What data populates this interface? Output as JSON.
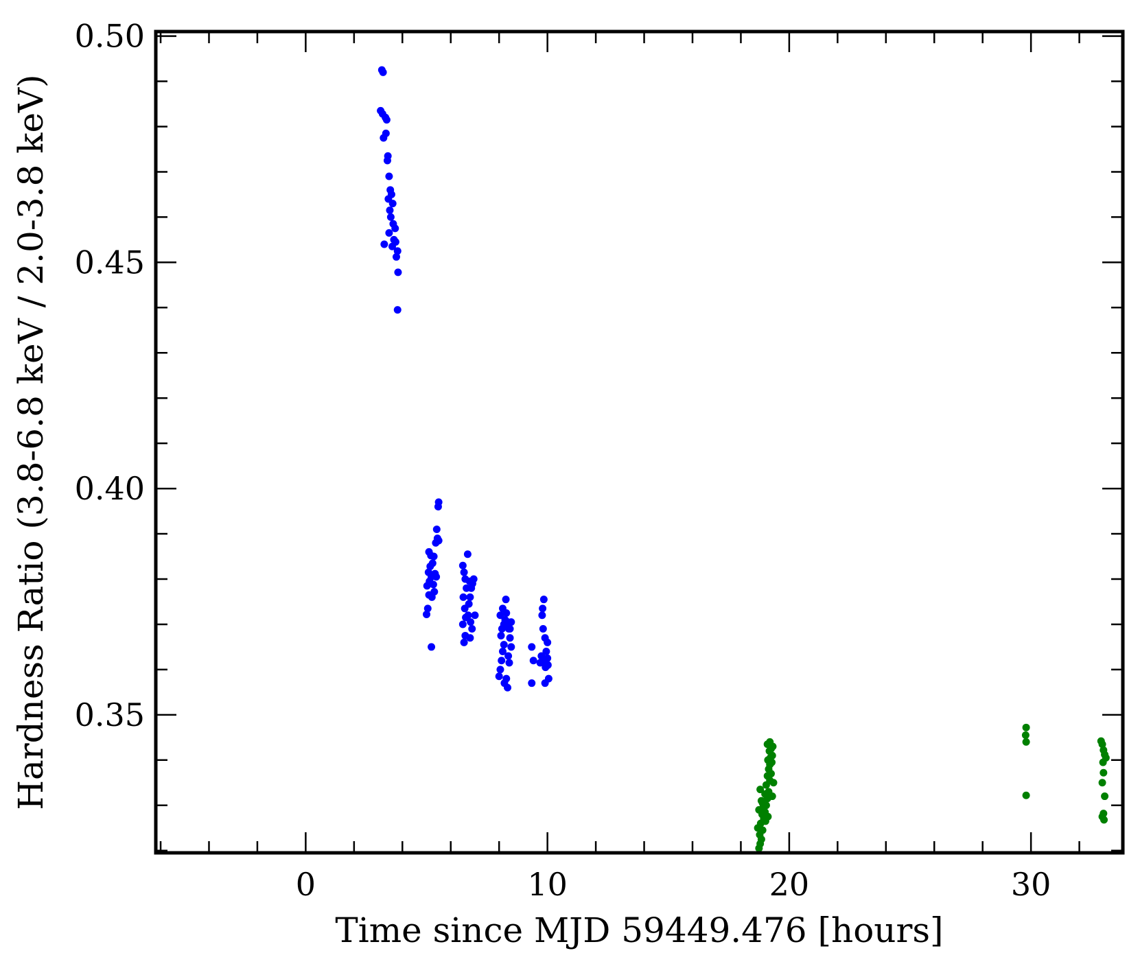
{
  "chart_data": {
    "type": "scatter",
    "title": "",
    "xlabel": "Time since MJD 59449.476 [hours]",
    "ylabel": "Hardness Ratio (3.8-6.8 keV / 2.0-3.8 keV)",
    "xlim": [
      -6.2,
      33.8
    ],
    "ylim": [
      0.3195,
      0.501
    ],
    "x_ticks": [
      0,
      10,
      20,
      30
    ],
    "x_tick_labels": [
      "0",
      "10",
      "20",
      "30"
    ],
    "y_ticks": [
      0.35,
      0.4,
      0.45,
      0.5
    ],
    "y_tick_labels": [
      "0.35",
      "0.40",
      "0.45",
      "0.50"
    ],
    "grid": false,
    "series": [
      {
        "color": "#0000ff",
        "points": [
          [
            3.15,
            0.4925
          ],
          [
            3.2,
            0.492
          ],
          [
            3.1,
            0.4835
          ],
          [
            3.18,
            0.4828
          ],
          [
            3.3,
            0.482
          ],
          [
            3.35,
            0.4815
          ],
          [
            3.22,
            0.4775
          ],
          [
            3.32,
            0.4785
          ],
          [
            3.4,
            0.4735
          ],
          [
            3.38,
            0.4725
          ],
          [
            3.45,
            0.469
          ],
          [
            3.5,
            0.466
          ],
          [
            3.55,
            0.465
          ],
          [
            3.42,
            0.464
          ],
          [
            3.6,
            0.463
          ],
          [
            3.48,
            0.4615
          ],
          [
            3.52,
            0.46
          ],
          [
            3.62,
            0.4585
          ],
          [
            3.7,
            0.4575
          ],
          [
            3.45,
            0.4565
          ],
          [
            3.65,
            0.455
          ],
          [
            3.72,
            0.4545
          ],
          [
            3.25,
            0.454
          ],
          [
            3.58,
            0.4535
          ],
          [
            3.8,
            0.4525
          ],
          [
            3.75,
            0.4512
          ],
          [
            3.82,
            0.4478
          ],
          [
            3.8,
            0.4395
          ],
          [
            5.0,
            0.3722
          ],
          [
            5.05,
            0.3735
          ],
          [
            5.1,
            0.3765
          ],
          [
            5.02,
            0.3785
          ],
          [
            5.12,
            0.3795
          ],
          [
            5.2,
            0.3805
          ],
          [
            5.08,
            0.3815
          ],
          [
            5.15,
            0.3828
          ],
          [
            5.25,
            0.3835
          ],
          [
            5.18,
            0.3852
          ],
          [
            5.3,
            0.385
          ],
          [
            5.1,
            0.386
          ],
          [
            5.35,
            0.3812
          ],
          [
            5.28,
            0.3788
          ],
          [
            5.32,
            0.3772
          ],
          [
            5.22,
            0.376
          ],
          [
            5.4,
            0.3805
          ],
          [
            5.38,
            0.388
          ],
          [
            5.45,
            0.389
          ],
          [
            5.5,
            0.3885
          ],
          [
            5.42,
            0.391
          ],
          [
            5.48,
            0.396
          ],
          [
            5.5,
            0.397
          ],
          [
            5.2,
            0.365
          ],
          [
            6.55,
            0.366
          ],
          [
            6.6,
            0.3675
          ],
          [
            6.5,
            0.37
          ],
          [
            6.62,
            0.3715
          ],
          [
            6.58,
            0.3735
          ],
          [
            6.52,
            0.376
          ],
          [
            6.65,
            0.378
          ],
          [
            6.6,
            0.38
          ],
          [
            6.55,
            0.3815
          ],
          [
            6.5,
            0.383
          ],
          [
            6.7,
            0.3855
          ],
          [
            6.75,
            0.3745
          ],
          [
            6.8,
            0.376
          ],
          [
            6.85,
            0.378
          ],
          [
            6.78,
            0.3795
          ],
          [
            6.9,
            0.379
          ],
          [
            6.72,
            0.372
          ],
          [
            6.82,
            0.3705
          ],
          [
            6.88,
            0.369
          ],
          [
            6.95,
            0.38
          ],
          [
            7.0,
            0.372
          ],
          [
            6.8,
            0.367
          ],
          [
            8.0,
            0.3585
          ],
          [
            8.05,
            0.36
          ],
          [
            8.1,
            0.362
          ],
          [
            8.15,
            0.364
          ],
          [
            8.2,
            0.3655
          ],
          [
            8.08,
            0.3675
          ],
          [
            8.12,
            0.369
          ],
          [
            8.2,
            0.37
          ],
          [
            8.25,
            0.371
          ],
          [
            8.3,
            0.3725
          ],
          [
            8.15,
            0.3735
          ],
          [
            8.05,
            0.372
          ],
          [
            8.35,
            0.3705
          ],
          [
            8.4,
            0.369
          ],
          [
            8.45,
            0.367
          ],
          [
            8.5,
            0.365
          ],
          [
            8.38,
            0.363
          ],
          [
            8.42,
            0.3615
          ],
          [
            8.3,
            0.358
          ],
          [
            8.35,
            0.356
          ],
          [
            8.22,
            0.357
          ],
          [
            8.28,
            0.3755
          ],
          [
            8.45,
            0.369
          ],
          [
            8.5,
            0.3705
          ],
          [
            9.35,
            0.365
          ],
          [
            9.42,
            0.362
          ],
          [
            9.35,
            0.357
          ],
          [
            9.8,
            0.3735
          ],
          [
            9.85,
            0.3755
          ],
          [
            9.78,
            0.372
          ],
          [
            9.82,
            0.369
          ],
          [
            9.9,
            0.367
          ],
          [
            9.95,
            0.364
          ],
          [
            9.85,
            0.362
          ],
          [
            10.0,
            0.3625
          ],
          [
            9.92,
            0.3605
          ],
          [
            10.05,
            0.358
          ],
          [
            9.9,
            0.357
          ],
          [
            10.02,
            0.361
          ],
          [
            9.7,
            0.3615
          ],
          [
            9.75,
            0.363
          ],
          [
            10.0,
            0.366
          ]
        ]
      },
      {
        "color": "#008000",
        "points": [
          [
            18.75,
            0.3205
          ],
          [
            18.8,
            0.3215
          ],
          [
            18.85,
            0.3225
          ],
          [
            18.78,
            0.3235
          ],
          [
            18.9,
            0.3245
          ],
          [
            18.82,
            0.326
          ],
          [
            18.95,
            0.327
          ],
          [
            18.88,
            0.328
          ],
          [
            19.0,
            0.3285
          ],
          [
            18.92,
            0.3295
          ],
          [
            19.05,
            0.33
          ],
          [
            18.85,
            0.331
          ],
          [
            19.1,
            0.3315
          ],
          [
            19.0,
            0.3325
          ],
          [
            19.15,
            0.333
          ],
          [
            18.8,
            0.3335
          ],
          [
            19.05,
            0.3345
          ],
          [
            19.2,
            0.3355
          ],
          [
            19.1,
            0.3365
          ],
          [
            19.25,
            0.337
          ],
          [
            19.15,
            0.338
          ],
          [
            19.2,
            0.339
          ],
          [
            19.28,
            0.3395
          ],
          [
            19.12,
            0.34
          ],
          [
            19.22,
            0.3405
          ],
          [
            19.3,
            0.341
          ],
          [
            19.18,
            0.342
          ],
          [
            19.25,
            0.3425
          ],
          [
            19.32,
            0.343
          ],
          [
            19.1,
            0.3435
          ],
          [
            19.2,
            0.344
          ],
          [
            18.7,
            0.325
          ],
          [
            18.75,
            0.329
          ],
          [
            18.9,
            0.3305
          ],
          [
            19.3,
            0.332
          ],
          [
            19.35,
            0.335
          ],
          [
            19.02,
            0.3265
          ],
          [
            19.12,
            0.3275
          ],
          [
            29.8,
            0.3472
          ],
          [
            29.78,
            0.3455
          ],
          [
            29.8,
            0.344
          ],
          [
            29.8,
            0.3322
          ],
          [
            32.9,
            0.3442
          ],
          [
            32.95,
            0.3435
          ],
          [
            33.0,
            0.3422
          ],
          [
            33.05,
            0.3412
          ],
          [
            33.1,
            0.3405
          ],
          [
            32.98,
            0.3395
          ],
          [
            33.0,
            0.3372
          ],
          [
            32.95,
            0.335
          ],
          [
            33.05,
            0.332
          ],
          [
            33.0,
            0.3282
          ],
          [
            32.95,
            0.3275
          ],
          [
            33.02,
            0.3268
          ]
        ]
      }
    ]
  }
}
